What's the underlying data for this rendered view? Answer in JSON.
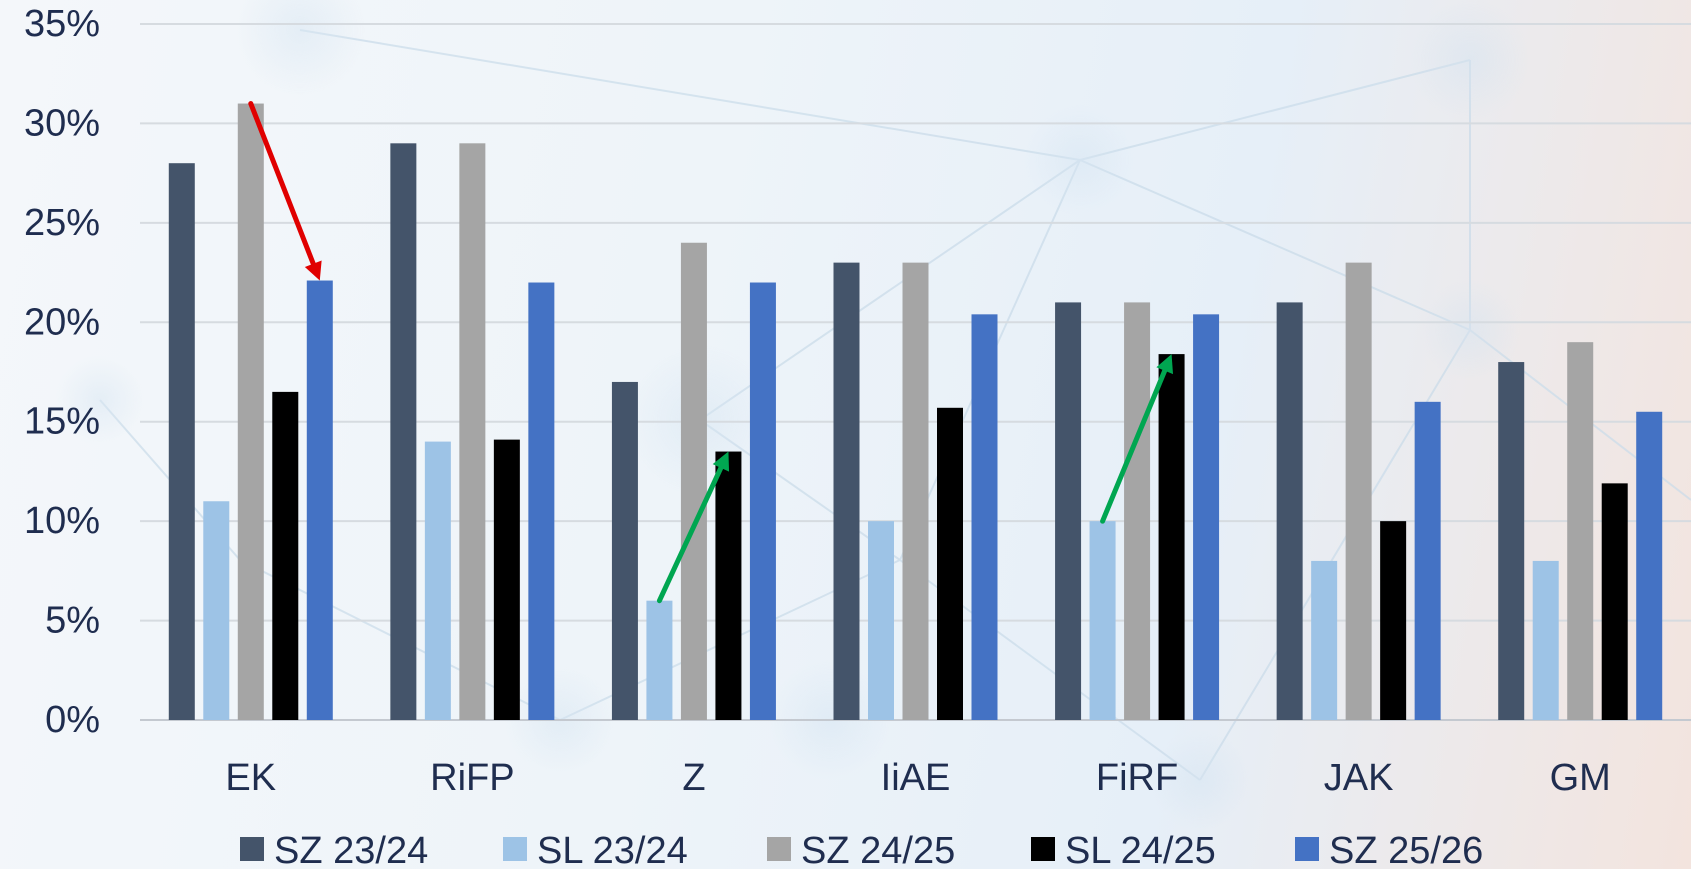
{
  "chart_data": {
    "type": "bar",
    "categories": [
      "EK",
      "RiFP",
      "Z",
      "IiAE",
      "FiRF",
      "JAK",
      "GM"
    ],
    "series": [
      {
        "name": "SZ 23/24",
        "color": "#44546a",
        "values": [
          28,
          29,
          17,
          23,
          21,
          21,
          18
        ]
      },
      {
        "name": "SL 23/24",
        "color": "#9dc3e6",
        "values": [
          11,
          14,
          6,
          10,
          10,
          8,
          8
        ]
      },
      {
        "name": "SZ 24/25",
        "color": "#a5a5a5",
        "values": [
          31,
          29,
          24,
          23,
          21,
          23,
          19
        ]
      },
      {
        "name": "SL 24/25",
        "color": "#000000",
        "values": [
          16.5,
          14.1,
          13.5,
          15.7,
          18.4,
          10,
          11.9
        ]
      },
      {
        "name": "SZ 25/26",
        "color": "#4472c4",
        "values": [
          22.1,
          22,
          22,
          20.4,
          20.4,
          16,
          15.5
        ]
      }
    ],
    "y_ticks": [
      "0%",
      "5%",
      "10%",
      "15%",
      "20%",
      "25%",
      "30%",
      "35%"
    ],
    "ylim": [
      0,
      35
    ],
    "grid": true,
    "legend_position": "bottom",
    "annotations": [
      {
        "type": "arrow",
        "color": "#e00000",
        "from": {
          "category": "EK",
          "series": "SZ 24/25",
          "value": 31
        },
        "to": {
          "category": "EK",
          "series": "SZ 25/26",
          "value": 22.1
        }
      },
      {
        "type": "arrow",
        "color": "#00a651",
        "from": {
          "category": "Z",
          "series": "SL 23/24",
          "value": 6
        },
        "to": {
          "category": "Z",
          "series": "SL 24/25",
          "value": 13.5
        }
      },
      {
        "type": "arrow",
        "color": "#00a651",
        "from": {
          "category": "FiRF",
          "series": "SL 23/24",
          "value": 10
        },
        "to": {
          "category": "FiRF",
          "series": "SL 24/25",
          "value": 18.4
        }
      }
    ]
  }
}
